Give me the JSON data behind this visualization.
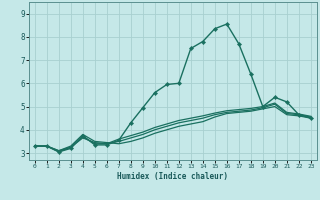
{
  "xlabel": "Humidex (Indice chaleur)",
  "xlim": [
    -0.5,
    23.5
  ],
  "ylim": [
    2.7,
    9.5
  ],
  "xtick_positions": [
    0,
    1,
    2,
    3,
    4,
    5,
    6,
    7,
    8,
    9,
    10,
    11,
    12,
    13,
    14,
    15,
    16,
    17,
    18,
    19,
    20,
    21,
    22,
    23
  ],
  "xtick_labels": [
    "0",
    "1",
    "2",
    "3",
    "4",
    "5",
    "6",
    "7",
    "8",
    "9",
    "10",
    "11",
    "12",
    "13",
    "14",
    "15",
    "16",
    "17",
    "18",
    "19",
    "20",
    "21",
    "22",
    "23"
  ],
  "ytick_positions": [
    3,
    4,
    5,
    6,
    7,
    8,
    9
  ],
  "ytick_labels": [
    "3",
    "4",
    "5",
    "6",
    "7",
    "8",
    "9"
  ],
  "background_color": "#c5e8e8",
  "grid_color": "#a8d0d0",
  "line_color": "#1a7060",
  "lines": [
    {
      "x": [
        0,
        1,
        2,
        3,
        4,
        5,
        6,
        7,
        8,
        9,
        10,
        11,
        12,
        13,
        14,
        15,
        16,
        17,
        18,
        19,
        20,
        21,
        22,
        23
      ],
      "y": [
        3.3,
        3.3,
        3.05,
        3.2,
        3.75,
        3.35,
        3.35,
        3.55,
        4.3,
        4.95,
        5.6,
        5.95,
        6.0,
        7.5,
        7.8,
        8.35,
        8.55,
        7.7,
        6.4,
        5.0,
        5.4,
        5.2,
        4.65,
        4.5
      ],
      "marker": "D",
      "markersize": 2.2,
      "linewidth": 1.0
    },
    {
      "x": [
        0,
        1,
        2,
        3,
        4,
        5,
        6,
        7,
        8,
        9,
        10,
        11,
        12,
        13,
        14,
        15,
        16,
        17,
        18,
        19,
        20,
        21,
        22,
        23
      ],
      "y": [
        3.3,
        3.3,
        3.1,
        3.3,
        3.8,
        3.5,
        3.45,
        3.4,
        3.5,
        3.65,
        3.85,
        4.0,
        4.15,
        4.25,
        4.35,
        4.55,
        4.7,
        4.75,
        4.8,
        4.9,
        5.0,
        4.65,
        4.6,
        4.5
      ],
      "marker": null,
      "markersize": 0,
      "linewidth": 0.9
    },
    {
      "x": [
        0,
        1,
        2,
        3,
        4,
        5,
        6,
        7,
        8,
        9,
        10,
        11,
        12,
        13,
        14,
        15,
        16,
        17,
        18,
        19,
        20,
        21,
        22,
        23
      ],
      "y": [
        3.3,
        3.3,
        3.1,
        3.25,
        3.65,
        3.45,
        3.4,
        3.5,
        3.65,
        3.8,
        4.0,
        4.15,
        4.3,
        4.4,
        4.5,
        4.65,
        4.75,
        4.8,
        4.85,
        4.95,
        5.1,
        4.7,
        4.65,
        4.55
      ],
      "marker": null,
      "markersize": 0,
      "linewidth": 0.9
    },
    {
      "x": [
        0,
        1,
        2,
        3,
        4,
        5,
        6,
        7,
        8,
        9,
        10,
        11,
        12,
        13,
        14,
        15,
        16,
        17,
        18,
        19,
        20,
        21,
        22,
        23
      ],
      "y": [
        3.3,
        3.3,
        3.05,
        3.25,
        3.7,
        3.4,
        3.4,
        3.6,
        3.75,
        3.9,
        4.1,
        4.25,
        4.4,
        4.5,
        4.6,
        4.72,
        4.82,
        4.87,
        4.92,
        5.0,
        5.15,
        4.75,
        4.68,
        4.58
      ],
      "marker": null,
      "markersize": 0,
      "linewidth": 0.9
    }
  ]
}
